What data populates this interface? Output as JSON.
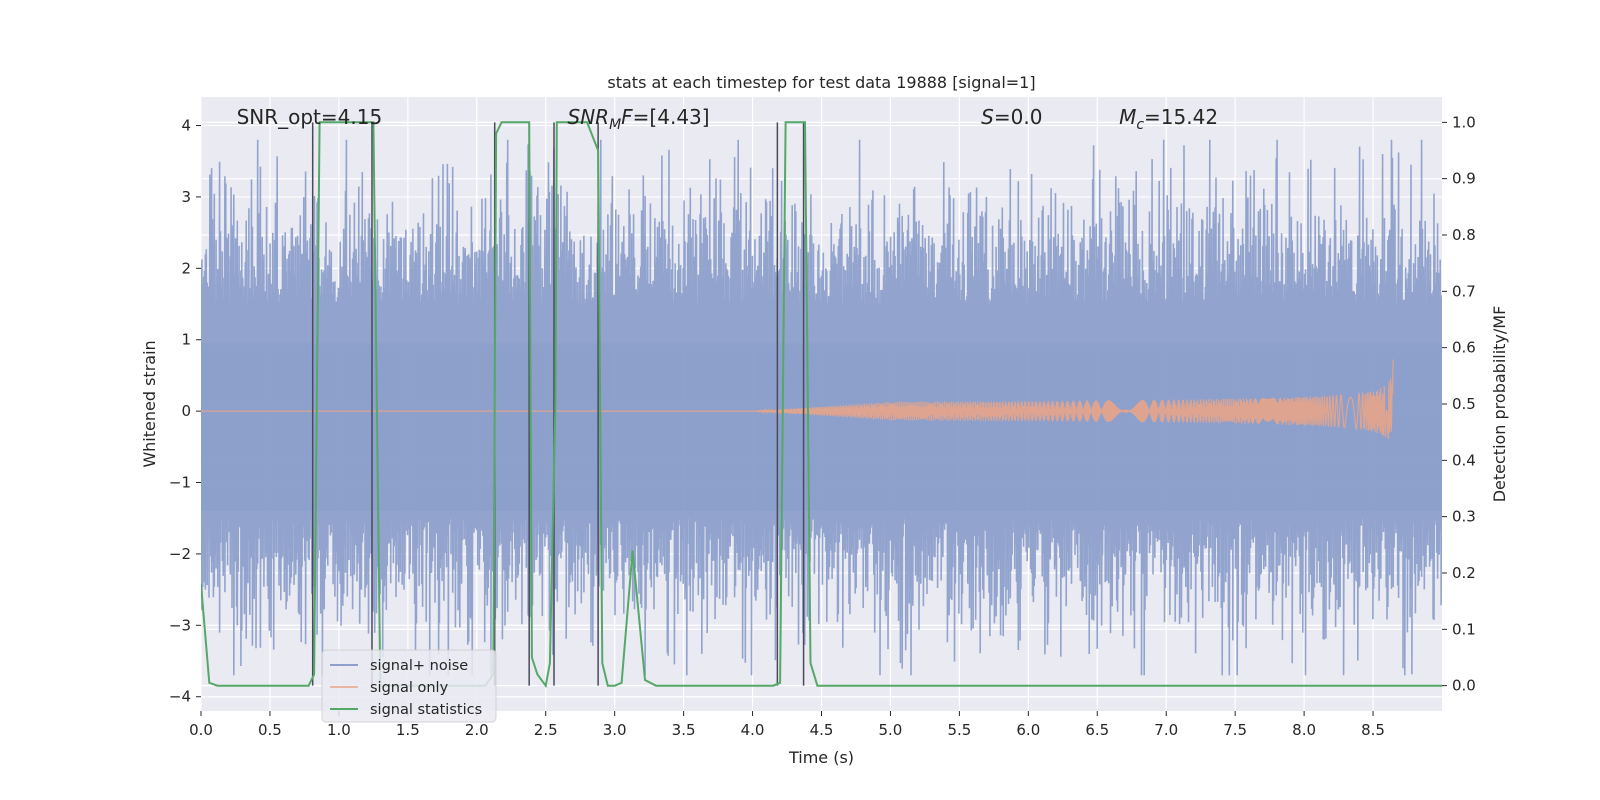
{
  "chart_data": {
    "type": "line",
    "title": "stats at each timestep for test data 19888 [signal=1]",
    "xlabel": "Time (s)",
    "ylabel": "Whitened strain",
    "y2label": "Detection probability/MF",
    "xlim": [
      0.0,
      9.0
    ],
    "ylim": [
      -4.2,
      4.4
    ],
    "y2lim": [
      -0.045,
      1.045
    ],
    "xticks": [
      "0.0",
      "0.5",
      "1.0",
      "1.5",
      "2.0",
      "2.5",
      "3.0",
      "3.5",
      "4.0",
      "4.5",
      "5.0",
      "5.5",
      "6.0",
      "6.5",
      "7.0",
      "7.5",
      "8.0",
      "8.5"
    ],
    "yticks": [
      "4",
      "3",
      "2",
      "1",
      "0",
      "−1",
      "−2",
      "−3",
      "−4"
    ],
    "y2ticks": [
      "1.0",
      "0.9",
      "0.8",
      "0.7",
      "0.6",
      "0.5",
      "0.4",
      "0.3",
      "0.2",
      "0.1",
      "0.0"
    ],
    "grid": true,
    "legend_position": "lower-left",
    "annotations": [
      {
        "text": "SNR_opt=4.15",
        "x": 0.2
      },
      {
        "text": "SNR_MF=[4.43]",
        "x": 2.6
      },
      {
        "text": "S=0.0",
        "x": 5.6
      },
      {
        "text": "M_c=15.42",
        "x": 6.6
      }
    ],
    "series": [
      {
        "name": "signal+ noise",
        "color": "#8da0cb",
        "kind": "noise",
        "t_start": 0.0,
        "t_end": 9.0,
        "typical_abs_max": 2.6,
        "extreme_range": [
          -3.7,
          3.8
        ]
      },
      {
        "name": "signal only",
        "color": "#e8a488",
        "kind": "chirp",
        "t_start": 0.0,
        "t_end": 8.65,
        "peak_amplitude": 0.72
      },
      {
        "name": "signal statistics",
        "color": "#55a868",
        "axis": "right",
        "x": [
          0.0,
          0.06,
          0.12,
          0.3,
          0.78,
          0.82,
          0.86,
          0.9,
          1.0,
          1.25,
          1.3,
          1.4,
          2.06,
          2.12,
          2.14,
          2.18,
          2.25,
          2.3,
          2.38,
          2.4,
          2.44,
          2.5,
          2.53,
          2.57,
          2.58,
          2.63,
          2.8,
          2.88,
          2.91,
          2.95,
          3.0,
          3.05,
          3.13,
          3.22,
          3.3,
          3.35,
          3.6,
          4.0,
          4.15,
          4.2,
          4.24,
          4.27,
          4.32,
          4.38,
          4.42,
          4.47,
          4.5,
          6.0,
          9.0
        ],
        "y": [
          0.18,
          0.005,
          0.0,
          0.0,
          0.0,
          0.02,
          1.0,
          1.0,
          1.0,
          1.0,
          0.0,
          0.0,
          0.0,
          0.02,
          0.98,
          1.0,
          1.0,
          1.0,
          1.0,
          0.05,
          0.02,
          0.0,
          0.04,
          0.5,
          1.0,
          1.0,
          1.0,
          0.95,
          0.04,
          0.0,
          0.0,
          0.005,
          0.24,
          0.01,
          0.0,
          0.0,
          0.0,
          0.0,
          0.0,
          0.005,
          1.0,
          1.0,
          1.0,
          1.0,
          0.04,
          0.0,
          0.0,
          0.0,
          0.0
        ]
      }
    ],
    "vlines": [
      {
        "x": 0.81,
        "ymin": 0.0,
        "ymax": 1.0
      },
      {
        "x": 1.24,
        "ymin": 0.0,
        "ymax": 1.0
      },
      {
        "x": 2.13,
        "ymin": 0.0,
        "ymax": 1.0
      },
      {
        "x": 2.38,
        "ymin": 0.0,
        "ymax": 1.0
      },
      {
        "x": 2.56,
        "ymin": 0.0,
        "ymax": 1.0
      },
      {
        "x": 2.88,
        "ymin": 0.0,
        "ymax": 1.0
      },
      {
        "x": 4.18,
        "ymin": 0.0,
        "ymax": 1.0
      },
      {
        "x": 4.37,
        "ymin": 0.0,
        "ymax": 1.0
      }
    ]
  }
}
